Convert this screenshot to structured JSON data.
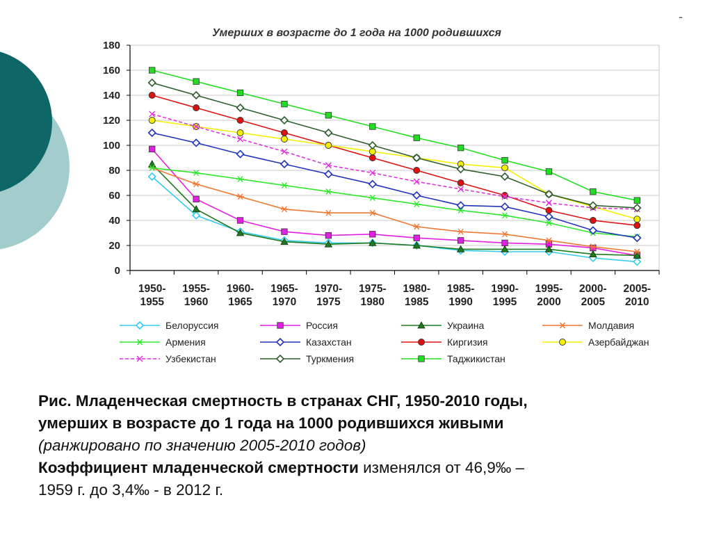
{
  "chart_data": {
    "type": "line",
    "title": "Умерших в возрасте до 1 года на 1000 родившихся",
    "xlabel": "",
    "ylabel": "",
    "ylim": [
      0,
      180
    ],
    "yticks": [
      "0",
      "20",
      "40",
      "60",
      "80",
      "100",
      "120",
      "140",
      "160",
      "180"
    ],
    "grid": true,
    "legend": "bottom",
    "categories": [
      [
        "1950-",
        "1955"
      ],
      [
        "1955-",
        "1960"
      ],
      [
        "1960-",
        "1965"
      ],
      [
        "1965-",
        "1970"
      ],
      [
        "1970-",
        "1975"
      ],
      [
        "1975-",
        "1980"
      ],
      [
        "1980-",
        "1985"
      ],
      [
        "1985-",
        "1990"
      ],
      [
        "1990-",
        "1995"
      ],
      [
        "1995-",
        "2000"
      ],
      [
        "2000-",
        "2005"
      ],
      [
        "2005-",
        "2010"
      ]
    ],
    "series": [
      {
        "name": "Белоруссия",
        "color": "#33CCEE",
        "marker": "diamond",
        "dash": false,
        "values": [
          75,
          44,
          31,
          24,
          22,
          22,
          20,
          16,
          15,
          15,
          10,
          7
        ]
      },
      {
        "name": "Россия",
        "color": "#E21FE2",
        "marker": "square",
        "dash": false,
        "values": [
          97,
          57,
          40,
          31,
          28,
          29,
          26,
          24,
          22,
          21,
          18,
          12
        ]
      },
      {
        "name": "Украина",
        "color": "#1E7A1E",
        "marker": "triangle",
        "dash": false,
        "values": [
          85,
          49,
          30,
          23,
          21,
          22,
          20,
          17,
          17,
          17,
          13,
          12
        ]
      },
      {
        "name": "Молдавия",
        "color": "#F07833",
        "marker": "asterisk",
        "dash": false,
        "values": [
          82,
          69,
          59,
          49,
          46,
          46,
          35,
          31,
          29,
          24,
          19,
          15
        ]
      },
      {
        "name": "Армения",
        "color": "#2EE82E",
        "marker": "asterisk",
        "dash": false,
        "values": [
          82,
          78,
          73,
          68,
          63,
          58,
          53,
          48,
          44,
          38,
          30,
          27
        ]
      },
      {
        "name": "Казахстан",
        "color": "#2233BB",
        "marker": "diamond",
        "dash": false,
        "values": [
          110,
          102,
          93,
          85,
          77,
          69,
          60,
          52,
          51,
          43,
          32,
          26
        ]
      },
      {
        "name": "Киргизия",
        "color": "#DD1111",
        "marker": "circle",
        "dash": false,
        "values": [
          140,
          130,
          120,
          110,
          100,
          90,
          80,
          70,
          60,
          48,
          40,
          36
        ]
      },
      {
        "name": "Азербайджан",
        "color": "#F5F000",
        "marker": "circle",
        "dash": false,
        "values": [
          120,
          115,
          110,
          105,
          100,
          95,
          90,
          85,
          82,
          61,
          51,
          41
        ]
      },
      {
        "name": "Узбекистан",
        "color": "#DD33DD",
        "marker": "x",
        "dash": true,
        "values": [
          125,
          115,
          105,
          95,
          84,
          78,
          71,
          65,
          59,
          54,
          50,
          49
        ]
      },
      {
        "name": "Туркмения",
        "color": "#2E5E2E",
        "marker": "diamond",
        "dash": false,
        "values": [
          150,
          140,
          130,
          120,
          110,
          100,
          90,
          81,
          75,
          61,
          52,
          50
        ]
      },
      {
        "name": "Таджикистан",
        "color": "#22DD22",
        "marker": "square",
        "dash": false,
        "values": [
          160,
          151,
          142,
          133,
          124,
          115,
          106,
          98,
          88,
          79,
          63,
          56
        ]
      }
    ]
  },
  "caption": {
    "line1": "Рис. Младенческая смертность в странах СНГ, 1950-2010 годы,",
    "line2": "умерших в возрасте до 1 года на 1000 родившихся живыми",
    "line3": "(ранжировано по значению 2005-2010 годов)",
    "line4_bold": "Коэффициент младенческой смертности",
    "line4_rest": " изменялся от 46,9‰ –",
    "line5": "1959 г. до 3,4‰ - в 2012 г."
  },
  "corner_mark": "-",
  "theme": {
    "teal_dark": "#0E6666",
    "teal_light": "#A2CDCC",
    "grid": "#C8C8C8",
    "axis": "#000000"
  }
}
